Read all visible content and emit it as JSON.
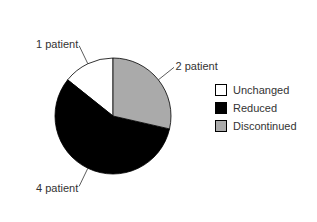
{
  "chart_data": {
    "type": "pie",
    "categories": [
      "Unchanged",
      "Reduced",
      "Discontinued"
    ],
    "values": [
      1,
      4,
      2
    ],
    "colors": [
      "white",
      "black",
      "#aaaaaa"
    ],
    "data_labels": true,
    "value_labels": [
      "1 patient",
      "4 patient",
      "2 patient"
    ],
    "legend": "right"
  }
}
